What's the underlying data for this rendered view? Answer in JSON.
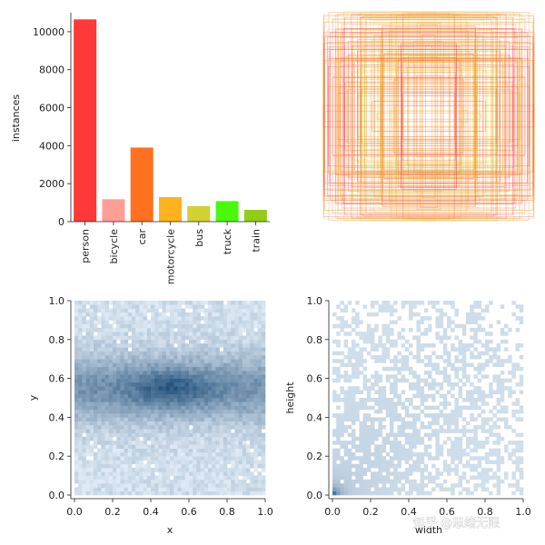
{
  "chart_data": [
    {
      "type": "bar",
      "categories": [
        "person",
        "bicycle",
        "car",
        "motorcycle",
        "bus",
        "truck",
        "train"
      ],
      "values": [
        10650,
        1180,
        3900,
        1290,
        820,
        1080,
        620
      ],
      "colors": [
        "#ff3838",
        "#ff9d97",
        "#ff701f",
        "#ffb21d",
        "#cfd231",
        "#48f90a",
        "#92cc17"
      ],
      "ylabel": "instances",
      "yticks": [
        "0",
        "2000",
        "4000",
        "6000",
        "8000",
        "10000"
      ],
      "ylim": [
        0,
        11000
      ],
      "grid": false
    },
    {
      "type": "other",
      "description": "Overlaid anchor/label boxes centered at the same point, outlined in red/orange/yellow tones",
      "colors": [
        "#ff3838",
        "#ff701f",
        "#ffb21d",
        "#cfd231"
      ],
      "box_count_hint": "many"
    },
    {
      "type": "heatmap",
      "xlabel": "x",
      "ylabel": "y",
      "xlim": [
        0,
        1
      ],
      "ylim": [
        0,
        1
      ],
      "xticks": [
        "0.0",
        "0.2",
        "0.4",
        "0.6",
        "0.8",
        "1.0"
      ],
      "yticks": [
        "0.0",
        "0.2",
        "0.4",
        "0.6",
        "0.8",
        "1.0"
      ],
      "density_peak": [
        0.5,
        0.55
      ],
      "colormap": [
        "#e9f2fb",
        "#1f4e79"
      ]
    },
    {
      "type": "heatmap",
      "xlabel": "width",
      "ylabel": "height",
      "xlim": [
        0,
        1
      ],
      "ylim": [
        0,
        1
      ],
      "xticks": [
        "0.0",
        "0.2",
        "0.4",
        "0.6",
        "0.8",
        "1.0"
      ],
      "yticks": [
        "0.0",
        "0.2",
        "0.4",
        "0.6",
        "0.8",
        "1.0"
      ],
      "density_peak": [
        0.03,
        0.05
      ],
      "colormap": [
        "#e9f2fb",
        "#1f4e79"
      ]
    }
  ],
  "watermark": "知乎 @思绪无限"
}
